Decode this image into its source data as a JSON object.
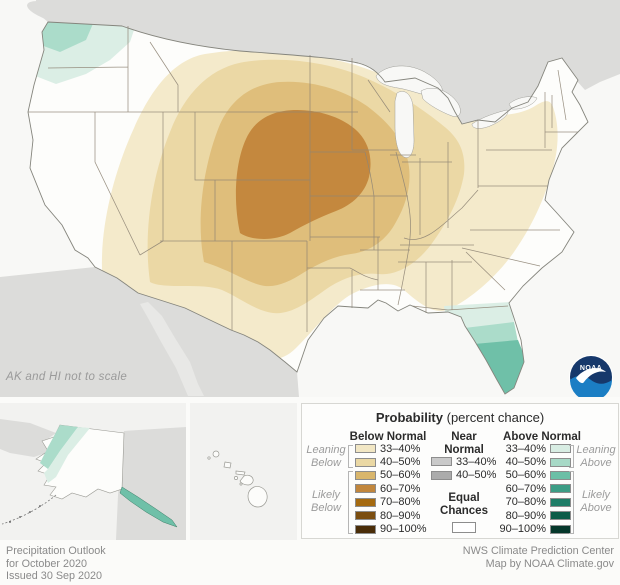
{
  "colors": {
    "ocean": "#f8f8f6",
    "foreign-land": "#dcdcda",
    "foreign-land-light": "#e8e8e6",
    "us-fill": "#fdfdfb",
    "state-line": "#8f8576",
    "coast-line": "#85857d",
    "mb33": "#f4eacb",
    "mb40": "#ebd8a5",
    "mb50": "#dfbe7b",
    "mb60": "#c4883e",
    "ma33": "#dbeee5",
    "ma40": "#abdcca",
    "ma50": "#6fc0a8",
    "noaa-dark": "#16386b",
    "noaa-blue": "#1b7ec4",
    "panel-bg": "#fdfdfc",
    "panel-border": "#d7d7d3",
    "bottom-bg": "#fbfbf9"
  },
  "map": {
    "note": "AK and HI not to scale",
    "noaa_logo_text": "NOAA"
  },
  "outlook": {
    "below_normal_peak": "60–70% over the central Plains (Nebraska, Kansas, Iowa)",
    "above_normal_areas": [
      "Pacific Northwest 33–50%",
      "Florida peninsula 33–60%",
      "western and southeast Alaska 33–50%"
    ]
  },
  "legend": {
    "title_bold": "Probability",
    "title_rest": " (percent chance)",
    "below": {
      "header": "Below Normal",
      "rows": [
        {
          "range": "33–40%",
          "color": "#f2e7c4"
        },
        {
          "range": "40–50%",
          "color": "#ead8a4"
        },
        {
          "range": "50–60%",
          "color": "#d9b66c"
        },
        {
          "range": "60–70%",
          "color": "#c1863c"
        },
        {
          "range": "70–80%",
          "color": "#a56a10"
        },
        {
          "range": "80–90%",
          "color": "#7b4e10"
        },
        {
          "range": "90–100%",
          "color": "#4a2d08"
        }
      ]
    },
    "near": {
      "header_line1": "Near",
      "header_line2": "Normal",
      "rows": [
        {
          "range": "33–40%",
          "color": "#c9c9c9"
        },
        {
          "range": "40–50%",
          "color": "#ababab"
        }
      ],
      "equal_line1": "Equal",
      "equal_line2": "Chances"
    },
    "above": {
      "header": "Above Normal",
      "rows": [
        {
          "range": "33–40%",
          "color": "#d8ede3"
        },
        {
          "range": "40–50%",
          "color": "#a7d9c6"
        },
        {
          "range": "50–60%",
          "color": "#6bbfa6"
        },
        {
          "range": "60–70%",
          "color": "#3c9d85"
        },
        {
          "range": "70–80%",
          "color": "#1f7d67"
        },
        {
          "range": "80–90%",
          "color": "#0d5c48"
        },
        {
          "range": "90–100%",
          "color": "#05372a"
        }
      ]
    },
    "side_labels": {
      "leaning_below": [
        "Leaning",
        "Below"
      ],
      "likely_below": [
        "Likely",
        "Below"
      ],
      "leaning_above": [
        "Leaning",
        "Above"
      ],
      "likely_above": [
        "Likely",
        "Above"
      ]
    }
  },
  "footer": {
    "left_lines": [
      "Precipitation Outlook",
      "for October 2020",
      "Issued 30 Sep 2020"
    ],
    "right_lines": [
      "NWS Climate Prediction Center",
      "Map by NOAA Climate.gov"
    ]
  }
}
